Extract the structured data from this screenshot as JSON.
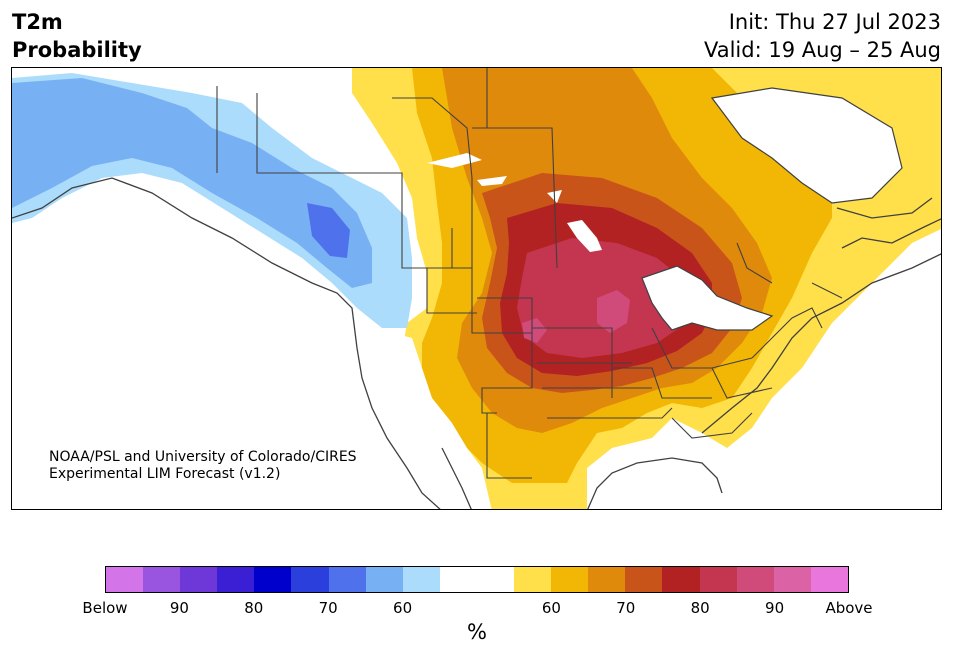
{
  "title": {
    "variable": "T2m",
    "type": "Probability",
    "init": "Init: Thu 27 Jul 2023",
    "valid": "Valid: 19 Aug – 25 Aug"
  },
  "credit": {
    "line1": "NOAA/PSL and University of Colorado/CIRES",
    "line2": "Experimental LIM Forecast (v1.2)"
  },
  "colorbar": {
    "unit": "%",
    "colors": [
      "#d375e8",
      "#9a55e0",
      "#6e38d8",
      "#3a1fd4",
      "#0000cc",
      "#2a3fdc",
      "#4f72ec",
      "#78b0f4",
      "#acdcfc",
      "#ffffff",
      "#ffffff",
      "#ffe04a",
      "#f2b705",
      "#e08a0c",
      "#c8541a",
      "#b22222",
      "#c43550",
      "#d04a7a",
      "#dc62a6",
      "#e876dc"
    ],
    "tick_labels": [
      "Below",
      "90",
      "80",
      "70",
      "60",
      "60",
      "70",
      "80",
      "90",
      "Above"
    ]
  },
  "map_colors": {
    "above_55": "#ffe04a",
    "above_60": "#f2b705",
    "above_65": "#e08a0c",
    "above_70": "#c8541a",
    "above_75": "#b22222",
    "above_80": "#c43550",
    "above_85": "#d04a7a",
    "below_55": "#acdcfc",
    "below_60": "#78b0f4",
    "below_65": "#4f72ec",
    "border": "#404040"
  }
}
